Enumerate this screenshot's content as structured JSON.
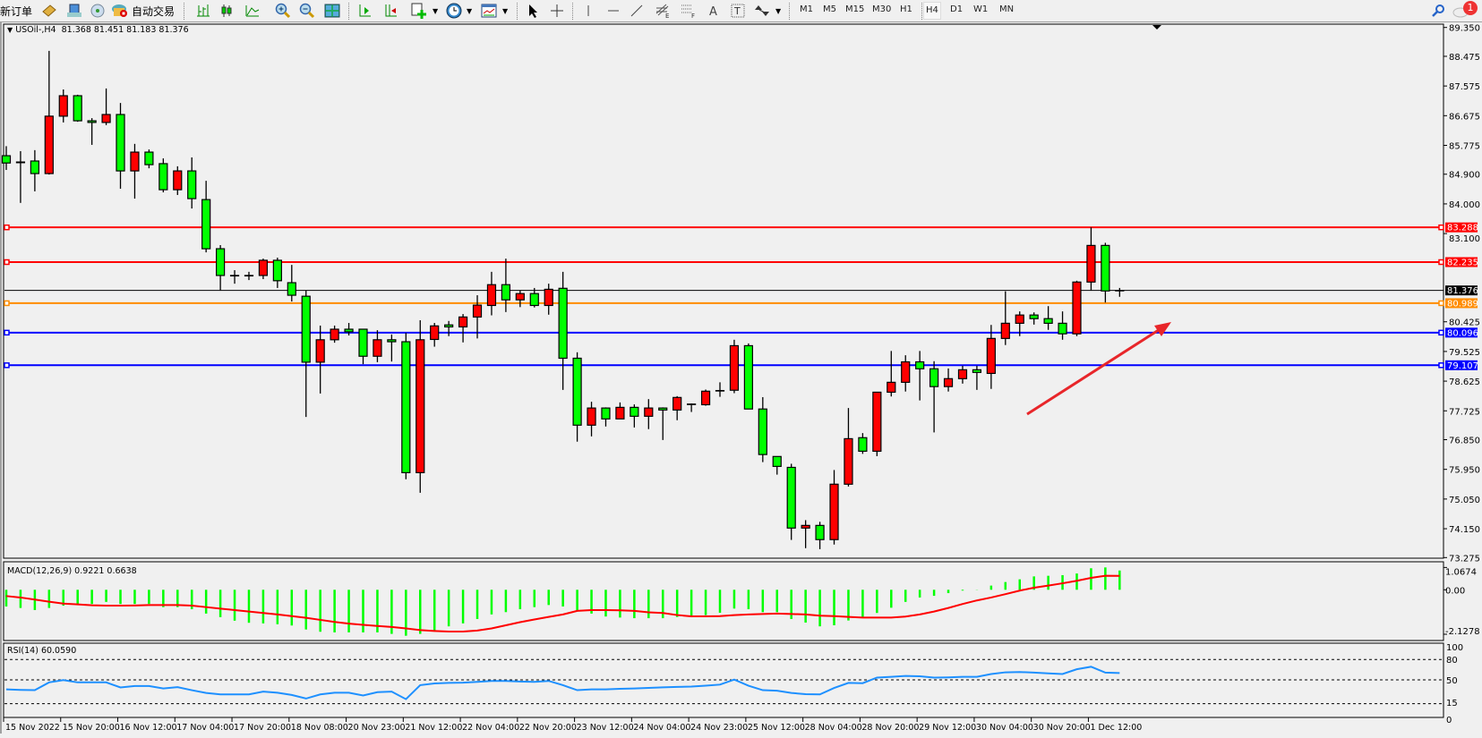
{
  "toolbar": {
    "new_order_label": "新订单",
    "autotrade_label": "自动交易",
    "timeframes": [
      "M1",
      "M5",
      "M15",
      "M30",
      "H1",
      "H4",
      "D1",
      "W1",
      "MN"
    ],
    "active_timeframe": "H4",
    "notification_count": "1",
    "icons": [
      "book-icon",
      "account-icon",
      "signal-icon",
      "autotrade-icon",
      "bar-chart-icon",
      "candlestick-icon",
      "line-chart-icon",
      "zoom-in-icon",
      "zoom-out-icon",
      "tile-windows-icon",
      "autoscroll-icon",
      "chart-shift-icon",
      "new-chart-icon",
      "clock-icon",
      "templates-icon",
      "cursor-icon",
      "crosshair-icon",
      "vertical-line-icon",
      "horizontal-line-icon",
      "trendline-icon",
      "fibonacci-icon",
      "fibo-fan-icon",
      "text-icon",
      "text-label-icon",
      "arrows-icon",
      "search-icon",
      "chat-icon"
    ]
  },
  "chart": {
    "symbol_label": "USOil-,H4",
    "ohlc_label": "81.368 81.451 81.183 81.376",
    "macd_label": "MACD(12,26,9) 0.9221 0.6638",
    "rsi_label": "RSI(14) 60.0590",
    "price_ticks": [
      "89.350",
      "88.475",
      "87.575",
      "86.675",
      "85.775",
      "84.900",
      "84.000",
      "83.100",
      "80.425",
      "79.525",
      "78.625",
      "77.725",
      "76.850",
      "75.950",
      "75.050",
      "74.150",
      "73.275"
    ],
    "macd_ticks": [
      "1.0674",
      "0.00",
      "-2.1278"
    ],
    "rsi_ticks": [
      "100",
      "80",
      "50",
      "15",
      "0"
    ],
    "time_labels": [
      "15 Nov 2022",
      "15 Nov 20:00",
      "16 Nov 12:00",
      "17 Nov 04:00",
      "17 Nov 20:00",
      "18 Nov 08:00",
      "20 Nov 23:00",
      "21 Nov 12:00",
      "22 Nov 04:00",
      "22 Nov 20:00",
      "23 Nov 12:00",
      "24 Nov 04:00",
      "24 Nov 23:00",
      "25 Nov 12:00",
      "28 Nov 04:00",
      "28 Nov 20:00",
      "29 Nov 12:00",
      "30 Nov 04:00",
      "30 Nov 20:00",
      "1 Dec 12:00"
    ],
    "horizontal_lines": [
      {
        "value": "83.288",
        "color": "#ff0000"
      },
      {
        "value": "82.235",
        "color": "#ff0000"
      },
      {
        "value": "81.376",
        "color": "#000000"
      },
      {
        "value": "80.989",
        "color": "#ff8c00"
      },
      {
        "value": "80.096",
        "color": "#0000ff"
      },
      {
        "value": "79.107",
        "color": "#0000ff"
      }
    ],
    "arrow_color": "#e8262a",
    "colors": {
      "bull": "#ff0000",
      "bear": "#00ff00",
      "macd_hist": "#00ff00",
      "macd_signal": "#ff0000",
      "rsi": "#1e90ff"
    }
  },
  "chart_data": {
    "type": "candlestick",
    "symbol": "USOil-",
    "timeframe": "H4",
    "ylim": [
      73.275,
      89.35
    ],
    "ohlc": [
      [
        85.46,
        85.75,
        85.03,
        85.24
      ],
      [
        85.25,
        85.6,
        84.03,
        85.27
      ],
      [
        85.3,
        85.63,
        84.38,
        84.92
      ],
      [
        84.92,
        88.64,
        84.89,
        86.66
      ],
      [
        86.66,
        87.47,
        86.47,
        87.28
      ],
      [
        87.28,
        87.31,
        86.49,
        86.52
      ],
      [
        86.52,
        86.6,
        85.79,
        86.47
      ],
      [
        86.47,
        87.5,
        86.39,
        86.71
      ],
      [
        86.71,
        87.06,
        84.46,
        85.0
      ],
      [
        85.0,
        85.82,
        84.16,
        85.57
      ],
      [
        85.57,
        85.65,
        85.08,
        85.19
      ],
      [
        85.22,
        85.38,
        84.35,
        84.43
      ],
      [
        84.43,
        85.14,
        84.27,
        85.0
      ],
      [
        85.0,
        85.41,
        83.86,
        84.16
      ],
      [
        84.13,
        84.7,
        82.53,
        82.64
      ],
      [
        82.64,
        82.75,
        81.37,
        81.83
      ],
      [
        81.83,
        81.99,
        81.58,
        81.82
      ],
      [
        81.83,
        81.94,
        81.69,
        81.83
      ],
      [
        81.83,
        82.34,
        81.72,
        82.29
      ],
      [
        82.29,
        82.37,
        81.45,
        81.67
      ],
      [
        81.61,
        82.15,
        81.04,
        81.23
      ],
      [
        81.2,
        81.37,
        77.54,
        79.2
      ],
      [
        79.2,
        80.31,
        78.25,
        79.88
      ],
      [
        79.88,
        80.31,
        79.79,
        80.2
      ],
      [
        80.2,
        80.39,
        80.01,
        80.12
      ],
      [
        80.2,
        80.2,
        79.14,
        79.38
      ],
      [
        79.38,
        80.17,
        79.2,
        79.88
      ],
      [
        79.88,
        80.04,
        79.22,
        79.82
      ],
      [
        79.82,
        80.09,
        75.65,
        75.85
      ],
      [
        75.85,
        80.47,
        75.24,
        79.88
      ],
      [
        79.89,
        80.39,
        79.67,
        80.3
      ],
      [
        80.33,
        80.45,
        79.99,
        80.27
      ],
      [
        80.27,
        80.66,
        79.8,
        80.57
      ],
      [
        80.57,
        81.23,
        79.92,
        80.93
      ],
      [
        80.92,
        81.94,
        80.62,
        81.55
      ],
      [
        81.55,
        82.34,
        80.72,
        81.09
      ],
      [
        81.09,
        81.37,
        80.87,
        81.28
      ],
      [
        81.28,
        81.45,
        80.86,
        80.92
      ],
      [
        80.92,
        81.58,
        80.64,
        81.41
      ],
      [
        81.44,
        81.94,
        78.36,
        79.32
      ],
      [
        79.32,
        79.5,
        76.79,
        77.29
      ],
      [
        77.29,
        78.0,
        76.95,
        77.81
      ],
      [
        77.81,
        77.83,
        77.25,
        77.48
      ],
      [
        77.48,
        77.98,
        77.48,
        77.83
      ],
      [
        77.83,
        77.92,
        77.22,
        77.56
      ],
      [
        77.56,
        78.08,
        77.17,
        77.81
      ],
      [
        77.81,
        77.83,
        76.84,
        77.75
      ],
      [
        77.75,
        78.17,
        77.44,
        78.13
      ],
      [
        77.93,
        77.95,
        77.69,
        77.93
      ],
      [
        77.91,
        78.37,
        77.88,
        78.32
      ],
      [
        78.34,
        78.59,
        78.15,
        78.34
      ],
      [
        78.35,
        79.88,
        78.26,
        79.7
      ],
      [
        79.7,
        79.77,
        77.78,
        77.78
      ],
      [
        77.78,
        78.14,
        76.17,
        76.4
      ],
      [
        76.34,
        76.34,
        75.79,
        76.04
      ],
      [
        76.01,
        76.12,
        73.81,
        74.17
      ],
      [
        74.17,
        74.41,
        73.56,
        74.25
      ],
      [
        74.25,
        74.36,
        73.53,
        73.82
      ],
      [
        73.82,
        75.93,
        73.67,
        75.5
      ],
      [
        75.5,
        77.81,
        75.43,
        76.88
      ],
      [
        76.91,
        77.05,
        76.42,
        76.5
      ],
      [
        76.5,
        78.29,
        76.35,
        78.29
      ],
      [
        78.29,
        79.54,
        78.16,
        78.59
      ],
      [
        78.59,
        79.41,
        78.31,
        79.21
      ],
      [
        79.21,
        79.54,
        78.04,
        79.0
      ],
      [
        79.0,
        79.23,
        77.07,
        78.46
      ],
      [
        78.46,
        79.01,
        78.31,
        78.7
      ],
      [
        78.7,
        79.09,
        78.55,
        78.97
      ],
      [
        78.97,
        79.09,
        78.36,
        78.89
      ],
      [
        78.86,
        80.33,
        78.39,
        79.92
      ],
      [
        79.92,
        81.35,
        79.72,
        80.38
      ],
      [
        80.38,
        80.74,
        79.99,
        80.63
      ],
      [
        80.63,
        80.71,
        80.34,
        80.52
      ],
      [
        80.52,
        80.9,
        80.18,
        80.38
      ],
      [
        80.38,
        80.74,
        79.88,
        80.06
      ],
      [
        80.06,
        81.67,
        79.99,
        81.63
      ],
      [
        81.63,
        83.29,
        81.37,
        82.74
      ],
      [
        82.74,
        82.82,
        81.01,
        81.36
      ],
      [
        81.368,
        81.451,
        81.183,
        81.376
      ]
    ],
    "macd": {
      "params": "12,26,9",
      "ylim": [
        -2.1278,
        1.0674
      ],
      "histogram": [
        -0.8,
        -0.87,
        -0.97,
        -0.87,
        -0.76,
        -0.68,
        -0.68,
        -0.58,
        -0.68,
        -0.68,
        -0.68,
        -0.83,
        -0.83,
        -0.93,
        -1.14,
        -1.31,
        -1.48,
        -1.58,
        -1.61,
        -1.65,
        -1.71,
        -1.9,
        -2.01,
        -2.04,
        -2.04,
        -2.04,
        -2.04,
        -2.11,
        -2.2,
        -2.11,
        -1.97,
        -1.75,
        -1.61,
        -1.4,
        -1.18,
        -1.07,
        -0.93,
        -0.83,
        -0.73,
        -0.8,
        -1.01,
        -1.14,
        -1.28,
        -1.33,
        -1.36,
        -1.36,
        -1.36,
        -1.3,
        -1.23,
        -1.21,
        -1.1,
        -0.9,
        -0.93,
        -1.07,
        -1.07,
        -1.4,
        -1.57,
        -1.75,
        -1.7,
        -1.47,
        -1.33,
        -1.11,
        -0.86,
        -0.58,
        -0.37,
        -0.29,
        -0.16,
        -0.04,
        0.01,
        0.2,
        0.37,
        0.5,
        0.64,
        0.67,
        0.7,
        0.78,
        1.03,
        1.07,
        0.9221
      ],
      "signal": [
        -0.3,
        -0.37,
        -0.47,
        -0.57,
        -0.66,
        -0.7,
        -0.74,
        -0.76,
        -0.76,
        -0.75,
        -0.73,
        -0.73,
        -0.73,
        -0.76,
        -0.83,
        -0.9,
        -0.97,
        -1.04,
        -1.11,
        -1.18,
        -1.26,
        -1.34,
        -1.44,
        -1.54,
        -1.62,
        -1.68,
        -1.73,
        -1.78,
        -1.85,
        -1.93,
        -1.97,
        -2.0,
        -2.0,
        -1.95,
        -1.85,
        -1.7,
        -1.55,
        -1.42,
        -1.3,
        -1.18,
        -1.01,
        -0.97,
        -0.97,
        -0.98,
        -1.01,
        -1.08,
        -1.11,
        -1.21,
        -1.27,
        -1.27,
        -1.26,
        -1.21,
        -1.18,
        -1.16,
        -1.14,
        -1.16,
        -1.18,
        -1.24,
        -1.26,
        -1.3,
        -1.33,
        -1.33,
        -1.33,
        -1.28,
        -1.18,
        -1.04,
        -0.87,
        -0.68,
        -0.51,
        -0.37,
        -0.21,
        -0.04,
        0.1,
        0.2,
        0.31,
        0.43,
        0.57,
        0.67,
        0.6638
      ]
    },
    "rsi": {
      "period": 14,
      "ylim": [
        0,
        100
      ],
      "levels": [
        80,
        50,
        15
      ],
      "values": [
        36,
        35.2,
        34.8,
        46.3,
        49.6,
        46.3,
        46.3,
        46.3,
        38.9,
        41,
        41,
        37.3,
        39.3,
        34.8,
        30.7,
        28.6,
        28.6,
        28.6,
        32.7,
        31.1,
        27.8,
        22.5,
        28.6,
        31.1,
        31.1,
        27,
        31.9,
        32.7,
        21.6,
        42.2,
        44.7,
        45.5,
        45.9,
        47.1,
        48.4,
        48.4,
        47.5,
        47.1,
        48.4,
        42.2,
        34.8,
        36,
        36,
        36.8,
        37.3,
        38.1,
        38.9,
        39.7,
        40.1,
        41.4,
        43,
        50.4,
        41.4,
        34.8,
        34,
        30.7,
        29,
        28.6,
        38.1,
        45.5,
        45.1,
        53.3,
        54.5,
        55.8,
        55.3,
        53.3,
        53.7,
        54.5,
        54.5,
        58.6,
        61.1,
        61.5,
        60.7,
        59.5,
        58.6,
        65.6,
        69.3,
        60.7,
        60.059
      ]
    }
  }
}
